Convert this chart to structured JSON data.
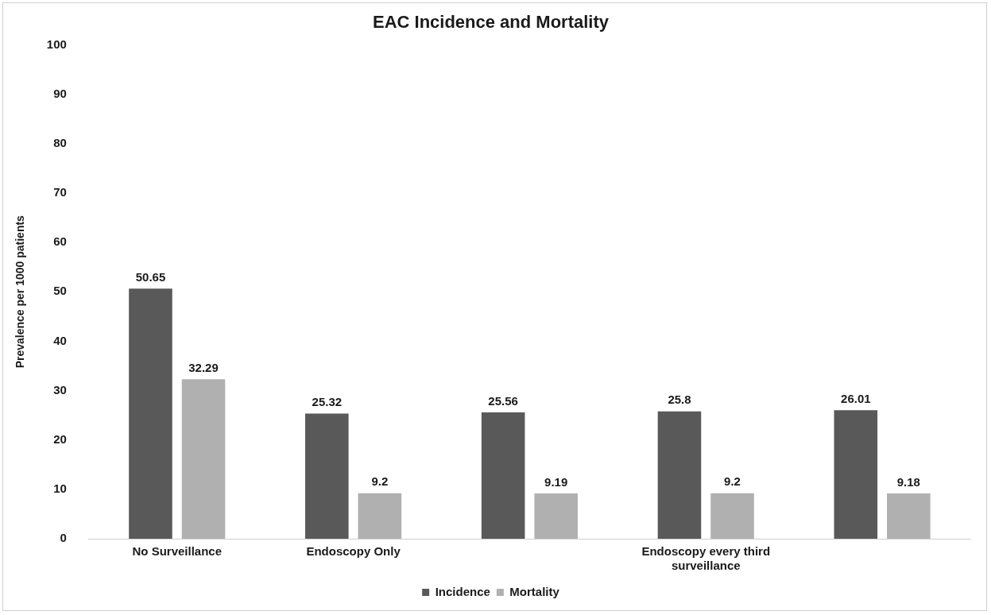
{
  "chart_data": {
    "type": "bar",
    "title": "EAC Incidence and Mortality",
    "ylabel": "Prevalence per 1000 patients",
    "categories": [
      "No Surveillance",
      "Endoscopy Only",
      null,
      "Endoscopy every third surveillance",
      null
    ],
    "series": [
      {
        "name": "Incidence",
        "color": "#595959",
        "values": [
          50.65,
          25.32,
          25.56,
          25.8,
          26.01
        ]
      },
      {
        "name": "Mortality",
        "color": "#b0b0b0",
        "values": [
          32.29,
          9.2,
          9.19,
          9.2,
          9.18
        ]
      }
    ],
    "ylim": [
      0,
      100
    ],
    "yticks": [
      0,
      10,
      20,
      30,
      40,
      50,
      60,
      70,
      80,
      90,
      100
    ],
    "grid": false,
    "legend": "bottom",
    "data_labels": true
  }
}
